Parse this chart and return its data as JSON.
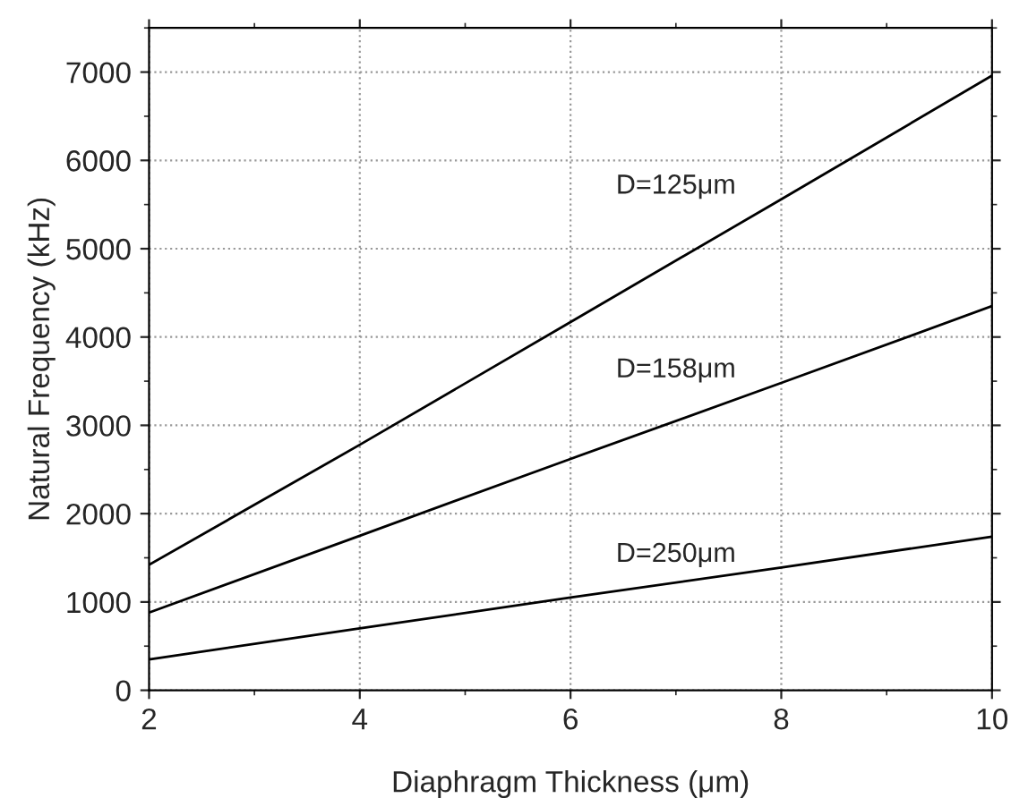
{
  "chart_data": {
    "type": "line",
    "xlabel": "Diaphragm Thickness (μm)",
    "ylabel": "Natural Frequency (kHz)",
    "x": [
      2,
      4,
      6,
      8,
      10
    ],
    "series": [
      {
        "name": "D=125μm",
        "color": "#000000",
        "values": [
          1420,
          2780,
          4170,
          5560,
          6960
        ]
      },
      {
        "name": "D=158μm",
        "color": "#000000",
        "values": [
          880,
          1750,
          2620,
          3480,
          4350
        ]
      },
      {
        "name": "D=250μm",
        "color": "#000000",
        "values": [
          350,
          700,
          1050,
          1390,
          1740
        ]
      }
    ],
    "xlim": [
      2,
      10
    ],
    "ylim": [
      0,
      7500
    ],
    "xticks": [
      2,
      4,
      6,
      8,
      10
    ],
    "yticks": [
      0,
      1000,
      2000,
      3000,
      4000,
      5000,
      6000,
      7000
    ],
    "grid": true,
    "marker": "none",
    "line_style": "solid",
    "legend": false
  }
}
